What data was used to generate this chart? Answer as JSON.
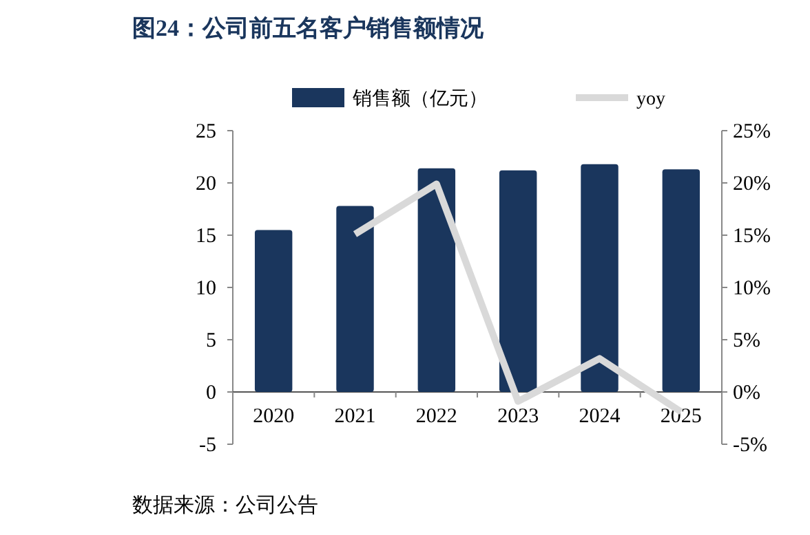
{
  "chart_data": {
    "type": "bar",
    "title": "图24：公司前五名客户销售额情况",
    "categories": [
      "2020",
      "2021",
      "2022",
      "2023",
      "2024",
      "2025"
    ],
    "series": [
      {
        "name": "销售额（亿元）",
        "color": "#1a365d",
        "values": [
          15.5,
          17.8,
          21.4,
          21.2,
          21.8,
          21.3
        ]
      },
      {
        "name": "yoy",
        "type": "line",
        "axis": "y2",
        "color": "#d9d9d9",
        "values": [
          null,
          15.1,
          19.9,
          -0.9,
          3.2,
          -1.9
        ]
      }
    ],
    "ylim": [
      -5,
      25
    ],
    "yticks": [
      -5,
      0,
      5,
      10,
      15,
      20,
      25
    ],
    "y2lim": [
      -5,
      25
    ],
    "y2ticks": [
      {
        "value": -5,
        "label": "-5%"
      },
      {
        "value": 0,
        "label": "0%"
      },
      {
        "value": 5,
        "label": "5%"
      },
      {
        "value": 10,
        "label": "10%"
      },
      {
        "value": 15,
        "label": "15%"
      },
      {
        "value": 20,
        "label": "20%"
      },
      {
        "value": 25,
        "label": "25%"
      }
    ],
    "legend": "top",
    "annotations": [
      "数据来源：公司公告"
    ]
  }
}
